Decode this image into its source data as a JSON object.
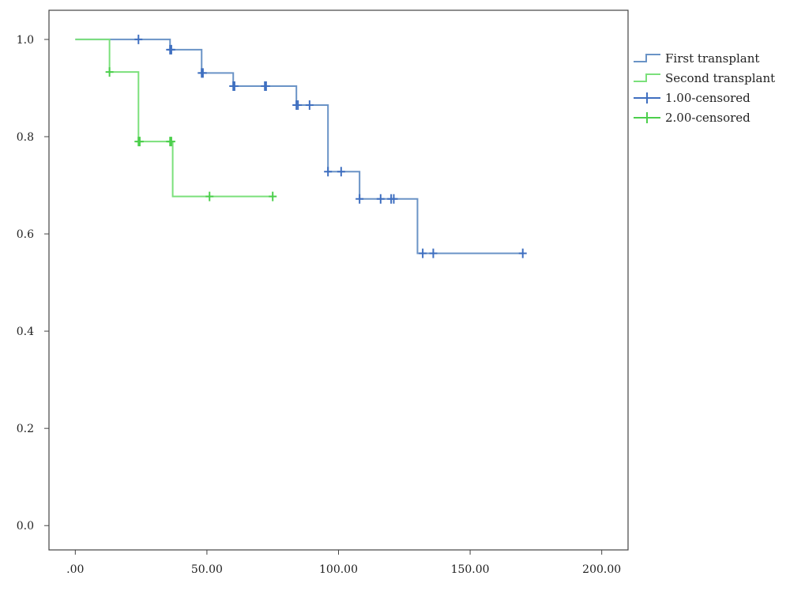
{
  "chart_data": {
    "type": "line",
    "title": "",
    "xlabel": "",
    "ylabel": "",
    "xlim": [
      -10,
      210
    ],
    "ylim": [
      -0.05,
      1.06
    ],
    "x_ticks": [
      0,
      50,
      100,
      150,
      200
    ],
    "x_tick_labels": [
      ".00",
      "50.00",
      "100.00",
      "150.00",
      "200.00"
    ],
    "y_ticks": [
      0,
      0.2,
      0.4,
      0.6,
      0.8,
      1.0
    ],
    "y_tick_labels": [
      "0.0",
      "0.2",
      "0.4",
      "0.6",
      "0.8",
      "1.0"
    ],
    "grid": false,
    "legend_position": "right",
    "series": [
      {
        "name": "First transplant",
        "color": "#6a93c6",
        "censor_color": "#3f6fc0",
        "censor_name": "1.00-censored",
        "steps": [
          [
            0,
            1.0
          ],
          [
            36,
            0.979
          ],
          [
            48,
            0.931
          ],
          [
            60,
            0.904
          ],
          [
            84,
            0.865
          ],
          [
            96,
            0.728
          ],
          [
            108,
            0.672
          ],
          [
            130,
            0.56
          ],
          [
            170,
            0.56
          ]
        ],
        "censored": [
          {
            "x": 24,
            "y": 1.0
          },
          {
            "x": 36,
            "y": 0.979
          },
          {
            "x": 36.5,
            "y": 0.979
          },
          {
            "x": 48,
            "y": 0.931
          },
          {
            "x": 48.5,
            "y": 0.931
          },
          {
            "x": 60,
            "y": 0.904
          },
          {
            "x": 60.5,
            "y": 0.904
          },
          {
            "x": 72,
            "y": 0.904
          },
          {
            "x": 72.5,
            "y": 0.904
          },
          {
            "x": 84,
            "y": 0.865
          },
          {
            "x": 84.6,
            "y": 0.865
          },
          {
            "x": 89,
            "y": 0.865
          },
          {
            "x": 96,
            "y": 0.728
          },
          {
            "x": 101,
            "y": 0.728
          },
          {
            "x": 108,
            "y": 0.672
          },
          {
            "x": 116,
            "y": 0.672
          },
          {
            "x": 120,
            "y": 0.672
          },
          {
            "x": 121,
            "y": 0.672
          },
          {
            "x": 132,
            "y": 0.56
          },
          {
            "x": 136,
            "y": 0.56
          },
          {
            "x": 170,
            "y": 0.56
          }
        ]
      },
      {
        "name": "Second transplant",
        "color": "#7be07b",
        "censor_color": "#4ccf4c",
        "censor_name": "2.00-censored",
        "steps": [
          [
            0,
            1.0
          ],
          [
            13,
            0.933
          ],
          [
            24,
            0.79
          ],
          [
            37,
            0.677
          ],
          [
            75,
            0.677
          ]
        ],
        "censored": [
          {
            "x": 13,
            "y": 0.933
          },
          {
            "x": 24,
            "y": 0.79
          },
          {
            "x": 24.5,
            "y": 0.79
          },
          {
            "x": 36,
            "y": 0.79
          },
          {
            "x": 36.5,
            "y": 0.79
          },
          {
            "x": 51,
            "y": 0.677
          },
          {
            "x": 75,
            "y": 0.677
          }
        ]
      }
    ],
    "legend": [
      {
        "label": "First transplant",
        "kind": "step",
        "color": "#6a93c6"
      },
      {
        "label": "Second transplant",
        "kind": "step",
        "color": "#7be07b"
      },
      {
        "label": "1.00-censored",
        "kind": "censor",
        "color": "#3f6fc0"
      },
      {
        "label": "2.00-censored",
        "kind": "censor",
        "color": "#4ccf4c"
      }
    ]
  }
}
